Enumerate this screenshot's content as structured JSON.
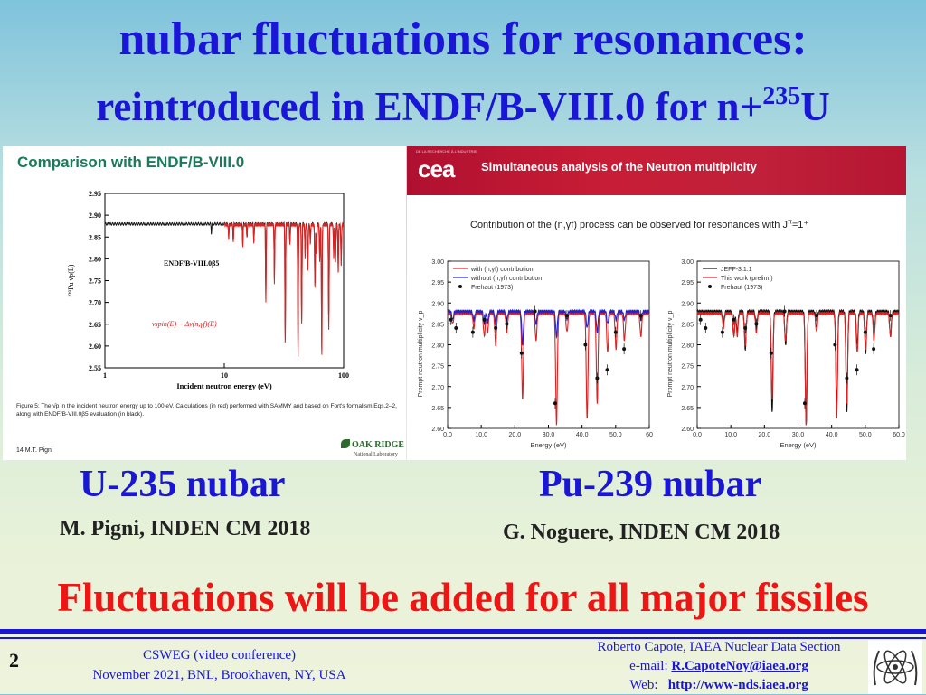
{
  "title": {
    "line1": "nubar fluctuations for resonances:",
    "line2_text": "reintroduced in ENDF/B-VIII.0 for n+",
    "line2_sup": "235",
    "line2_end": "U"
  },
  "left_figure": {
    "heading": "Comparison with ENDF/B-VIII.0",
    "caption": "Figure 5: The ν̄p in the incident neutron energy up to 100 eV. Calculations (in red) performed with SAMMY and based on Fort's formalism Eqs.2–2, along with ENDF/B-VIII.0β5 evaluation (in black).",
    "credit": "14 M.T. Pigni",
    "logo_text": "OAK RIDGE",
    "logo_sub": "National Laboratory",
    "chart_data": {
      "type": "line",
      "xscale": "log",
      "xlim": [
        1,
        100
      ],
      "ylim": [
        2.55,
        2.95
      ],
      "x_ticks": [
        "1",
        "10",
        "100"
      ],
      "y_ticks": [
        "2.55",
        "2.60",
        "2.65",
        "2.70",
        "2.75",
        "2.80",
        "2.85",
        "2.90",
        "2.95"
      ],
      "xlabel": "Incident neutron energy (eV)",
      "ylabel": "²³⁹Pu ν̄p(E)",
      "annotations": [
        "ENDF/B-VIII.0β5",
        "νspin(E) − Δν(n,γf)(E)"
      ],
      "series": [
        {
          "color": "#111111",
          "baseline": 2.88,
          "x_start": 1,
          "dips": [
            [
              7.8,
              2.858
            ],
            [
              10.9,
              2.85
            ],
            [
              11.9,
              2.84
            ],
            [
              14.3,
              2.83
            ],
            [
              15.5,
              2.85
            ],
            [
              17.7,
              2.84
            ],
            [
              22.3,
              2.72
            ],
            [
              26.3,
              2.75
            ],
            [
              32.4,
              2.61
            ],
            [
              35.5,
              2.84
            ],
            [
              41.5,
              2.57
            ],
            [
              44.5,
              2.66
            ],
            [
              47.6,
              2.81
            ],
            [
              50.1,
              2.78
            ],
            [
              52.6,
              2.84
            ],
            [
              57.5,
              2.74
            ],
            [
              59.2,
              2.82
            ],
            [
              63.1,
              2.8
            ],
            [
              65.6,
              2.59
            ],
            [
              75.1,
              2.65
            ],
            [
              82.6,
              2.81
            ],
            [
              85.5,
              2.8
            ],
            [
              90.1,
              2.78
            ],
            [
              95.4,
              2.79
            ]
          ]
        },
        {
          "color": "#e02020",
          "baseline": 2.878,
          "x_start": 10,
          "dips": [
            [
              10.9,
              2.846
            ],
            [
              11.9,
              2.84
            ],
            [
              14.3,
              2.828
            ],
            [
              15.5,
              2.848
            ],
            [
              17.7,
              2.838
            ],
            [
              22.3,
              2.7
            ],
            [
              26.3,
              2.74
            ],
            [
              32.4,
              2.6
            ],
            [
              35.5,
              2.83
            ],
            [
              41.5,
              2.57
            ],
            [
              44.5,
              2.65
            ],
            [
              47.6,
              2.8
            ],
            [
              50.1,
              2.77
            ],
            [
              52.6,
              2.83
            ],
            [
              57.5,
              2.73
            ],
            [
              59.2,
              2.81
            ],
            [
              63.1,
              2.79
            ],
            [
              65.6,
              2.58
            ],
            [
              75.1,
              2.64
            ],
            [
              82.6,
              2.8
            ],
            [
              85.5,
              2.79
            ],
            [
              90.1,
              2.77
            ],
            [
              95.4,
              2.78
            ]
          ]
        }
      ]
    }
  },
  "right_figure": {
    "header_tiny": "DE LA RECHERCHE À L'INDUSTRIE",
    "logo_text": "cea",
    "heading": "Simultaneous analysis of the Neutron multiplicity",
    "subtitle": "Contribution of the (n,γf) process can be observed for resonances with J",
    "subtitle_sup": "π",
    "subtitle_end": "=1⁺",
    "chart_data": [
      {
        "type": "line",
        "xlim": [
          0,
          60
        ],
        "ylim": [
          2.6,
          3.0
        ],
        "x_ticks": [
          "0.0",
          "10.0",
          "20.0",
          "30.0",
          "40.0",
          "50.0",
          "60"
        ],
        "y_ticks": [
          "2.60",
          "2.65",
          "2.70",
          "2.75",
          "2.80",
          "2.85",
          "2.90",
          "2.95",
          "3.00"
        ],
        "xlabel": "Energy (eV)",
        "ylabel": "Prompt neutron multiplicity ν_p",
        "legend": [
          "with (n,γf) contribution",
          "without (n,γf) contribution",
          "Frehaut (1973)"
        ],
        "series": [
          {
            "name": "with (n,γf) contribution",
            "color": "#e02020",
            "baseline": 2.875,
            "dips": [
              [
                1.5,
                2.85
              ],
              [
                7.8,
                2.84
              ],
              [
                10.9,
                2.82
              ],
              [
                11.9,
                2.83
              ],
              [
                14.3,
                2.8
              ],
              [
                17.6,
                2.83
              ],
              [
                22.3,
                2.67
              ],
              [
                26.3,
                2.81
              ],
              [
                32.4,
                2.61
              ],
              [
                35.5,
                2.83
              ],
              [
                41.5,
                2.62
              ],
              [
                44.5,
                2.66
              ],
              [
                47.6,
                2.78
              ],
              [
                50.1,
                2.79
              ],
              [
                52.6,
                2.81
              ],
              [
                57.5,
                2.82
              ]
            ]
          },
          {
            "name": "without (n,γf) contribution",
            "color": "#2222cc",
            "baseline": 2.88,
            "dips": [
              [
                1.5,
                2.86
              ],
              [
                7.8,
                2.86
              ],
              [
                10.9,
                2.85
              ],
              [
                11.9,
                2.855
              ],
              [
                14.3,
                2.85
              ],
              [
                17.6,
                2.86
              ],
              [
                22.3,
                2.8
              ],
              [
                26.3,
                2.85
              ],
              [
                32.4,
                2.82
              ],
              [
                35.5,
                2.86
              ],
              [
                41.5,
                2.84
              ],
              [
                44.5,
                2.83
              ],
              [
                47.6,
                2.85
              ],
              [
                50.1,
                2.86
              ],
              [
                52.6,
                2.86
              ],
              [
                57.5,
                2.86
              ]
            ]
          }
        ],
        "points": [
          [
            1.0,
            2.86
          ],
          [
            2.5,
            2.84
          ],
          [
            7.5,
            2.83
          ],
          [
            10.9,
            2.86
          ],
          [
            14.3,
            2.84
          ],
          [
            17.6,
            2.85
          ],
          [
            22.0,
            2.78
          ],
          [
            26.0,
            2.88
          ],
          [
            32.0,
            2.66
          ],
          [
            35.5,
            2.87
          ],
          [
            41.0,
            2.8
          ],
          [
            44.5,
            2.72
          ],
          [
            47.5,
            2.74
          ],
          [
            50.0,
            2.83
          ],
          [
            52.5,
            2.79
          ],
          [
            57.5,
            2.87
          ]
        ]
      },
      {
        "type": "line",
        "xlim": [
          0,
          60
        ],
        "ylim": [
          2.6,
          3.0
        ],
        "x_ticks": [
          "0.0",
          "10.0",
          "20.0",
          "30.0",
          "40.0",
          "50.0",
          "60.0"
        ],
        "y_ticks": [
          "2.60",
          "2.65",
          "2.70",
          "2.75",
          "2.80",
          "2.85",
          "2.90",
          "2.95",
          "3.00"
        ],
        "xlabel": "Energy (eV)",
        "ylabel": "Prompt neutron multiplicity ν_p",
        "legend": [
          "JEFF-3.1.1",
          "This work (prelim.)",
          "Frehaut (1973)"
        ],
        "series": [
          {
            "name": "JEFF-3.1.1",
            "color": "#111111",
            "baseline": 2.88,
            "dips": [
              [
                7.8,
                2.85
              ],
              [
                10.9,
                2.82
              ],
              [
                11.9,
                2.83
              ],
              [
                14.3,
                2.79
              ],
              [
                17.6,
                2.84
              ],
              [
                22.3,
                2.64
              ],
              [
                26.3,
                2.8
              ],
              [
                32.4,
                2.61
              ],
              [
                35.5,
                2.84
              ],
              [
                41.5,
                2.65
              ],
              [
                44.5,
                2.64
              ],
              [
                47.6,
                2.8
              ],
              [
                50.1,
                2.78
              ],
              [
                52.6,
                2.82
              ],
              [
                57.5,
                2.82
              ]
            ]
          },
          {
            "name": "This work (prelim.)",
            "color": "#e02020",
            "baseline": 2.875,
            "dips": [
              [
                7.8,
                2.84
              ],
              [
                10.9,
                2.82
              ],
              [
                11.9,
                2.82
              ],
              [
                14.3,
                2.8
              ],
              [
                17.6,
                2.83
              ],
              [
                22.3,
                2.67
              ],
              [
                26.3,
                2.81
              ],
              [
                32.4,
                2.61
              ],
              [
                35.5,
                2.83
              ],
              [
                41.5,
                2.62
              ],
              [
                44.5,
                2.66
              ],
              [
                47.6,
                2.78
              ],
              [
                50.1,
                2.79
              ],
              [
                52.6,
                2.81
              ],
              [
                57.5,
                2.82
              ]
            ]
          }
        ],
        "points": [
          [
            1.0,
            2.86
          ],
          [
            2.5,
            2.84
          ],
          [
            7.5,
            2.83
          ],
          [
            10.9,
            2.86
          ],
          [
            14.3,
            2.84
          ],
          [
            17.6,
            2.85
          ],
          [
            22.0,
            2.78
          ],
          [
            26.0,
            2.88
          ],
          [
            32.0,
            2.66
          ],
          [
            35.5,
            2.87
          ],
          [
            41.0,
            2.8
          ],
          [
            44.5,
            2.72
          ],
          [
            47.5,
            2.74
          ],
          [
            50.0,
            2.83
          ],
          [
            52.5,
            2.79
          ],
          [
            57.5,
            2.87
          ]
        ]
      }
    ]
  },
  "labels": {
    "left_big": "U-235 nubar",
    "right_big": "Pu-239 nubar",
    "left_author": "M. Pigni, INDEN CM 2018",
    "right_author": "G. Noguere, INDEN CM 2018"
  },
  "statement": "Fluctuations will be added for all major fissiles",
  "footer": {
    "page_number": "2",
    "event_line1": "CSWEG (video conference)",
    "event_line2": "November 2021, BNL, Brookhaven, NY, USA",
    "author_line": "Roberto Capote, IAEA Nuclear Data Section",
    "email_label": "e-mail: ",
    "email": "R.CapoteNoy@iaea.org",
    "web_label": "Web:   ",
    "web": "http://www-nds.iaea.org"
  },
  "colors": {
    "title_blue": "#1a16d6",
    "statement_red": "#ee1515",
    "cea_red": "#c0203a",
    "ornl_green": "#2d6a2d"
  }
}
